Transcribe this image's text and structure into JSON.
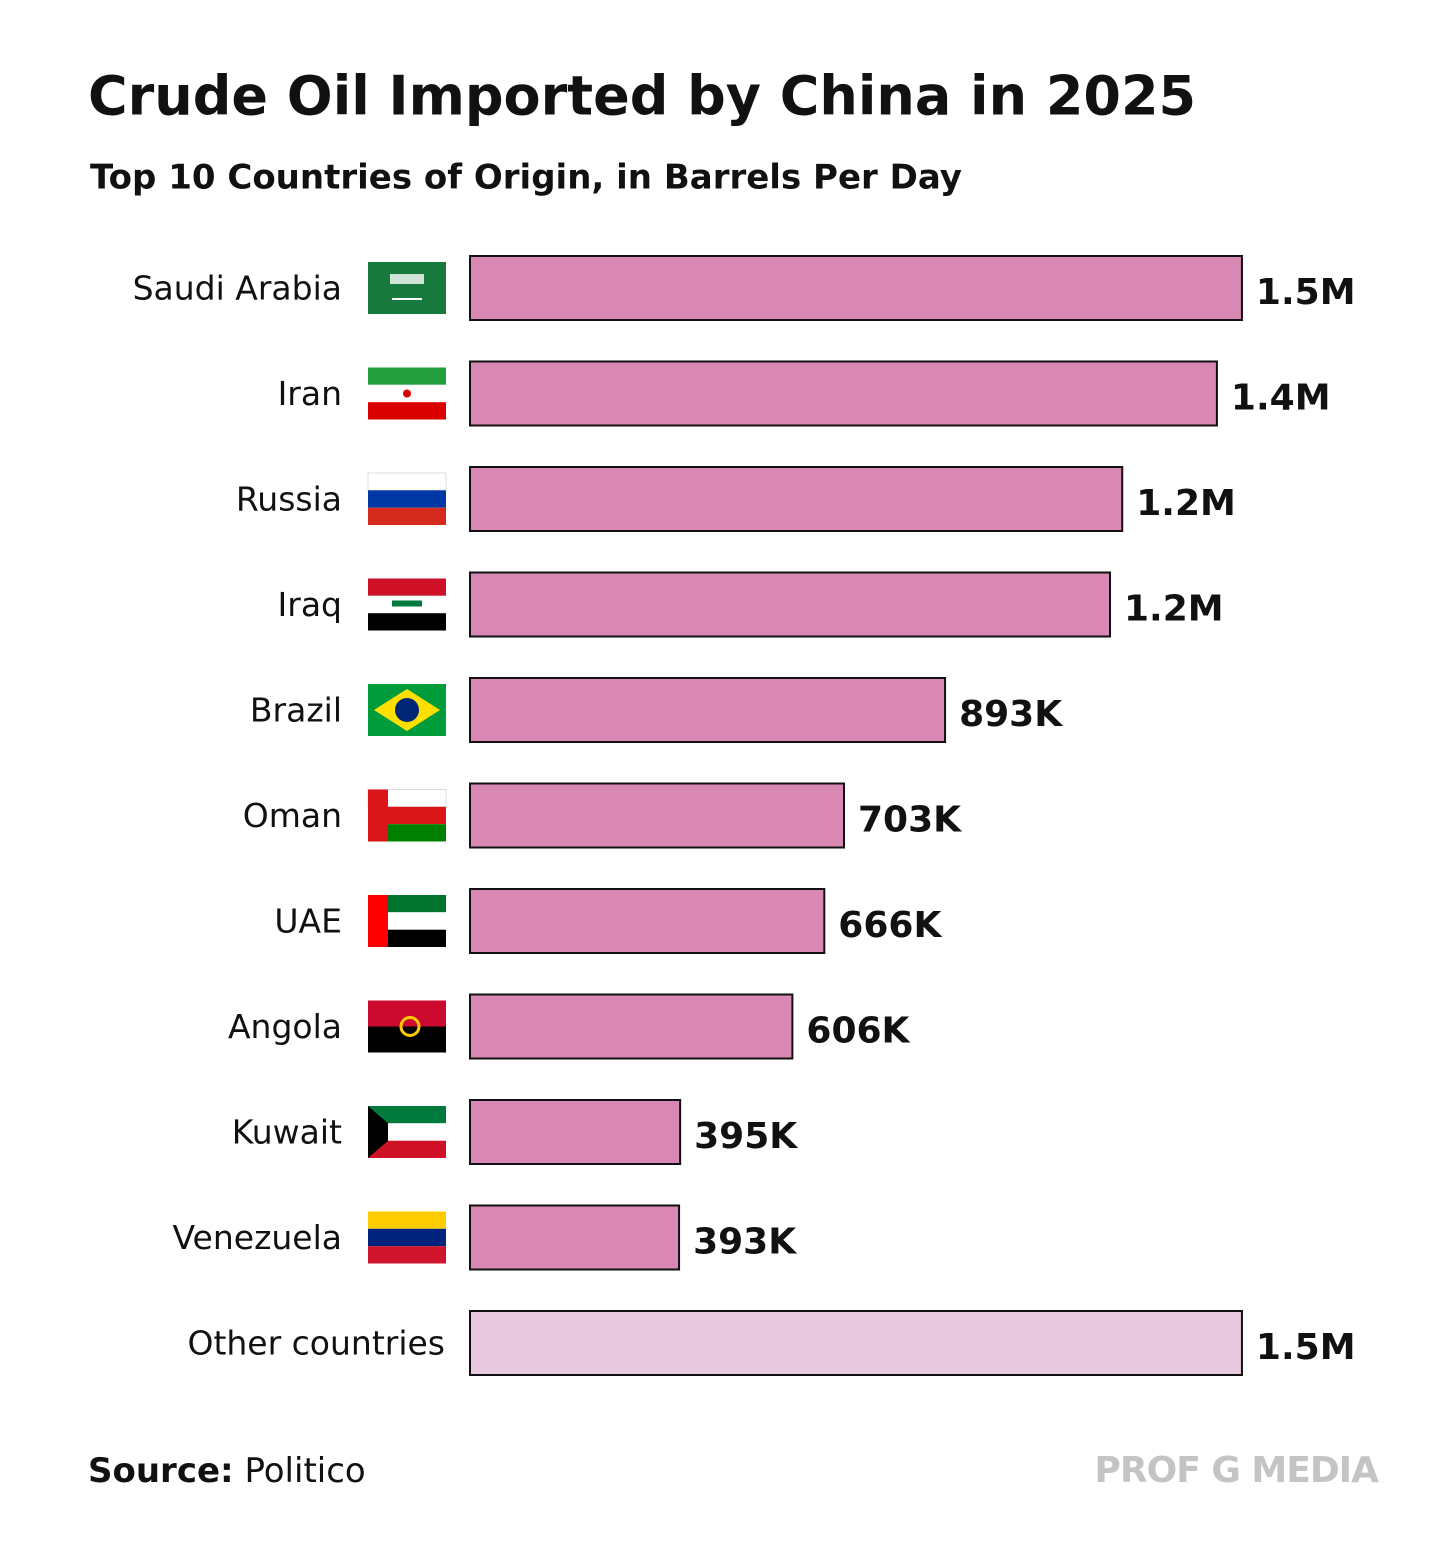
{
  "chart_data": {
    "type": "bar",
    "orientation": "horizontal",
    "title": "Crude Oil Imported by China in 2025",
    "subtitle": "Top 10 Countries of Origin, in Barrels Per Day",
    "categories": [
      "Saudi Arabia",
      "Iran",
      "Russia",
      "Iraq",
      "Brazil",
      "Oman",
      "UAE",
      "Angola",
      "Kuwait",
      "Venezuela",
      "Other countries"
    ],
    "values": [
      1451000,
      1404000,
      1226000,
      1203000,
      893000,
      703000,
      666000,
      606000,
      395000,
      393000,
      1451000
    ],
    "value_labels": [
      "1.5M",
      "1.4M",
      "1.2M",
      "1.2M",
      "893K",
      "703K",
      "666K",
      "606K",
      "395K",
      "393K",
      "1.5M"
    ],
    "colors": [
      "#d987b3",
      "#d987b3",
      "#d987b3",
      "#d987b3",
      "#d987b3",
      "#d987b3",
      "#d987b3",
      "#d987b3",
      "#d987b3",
      "#d987b3",
      "#e8c8de"
    ],
    "xlim": [
      0,
      1500000
    ],
    "source_label": "Source:",
    "source": "Politico",
    "watermark": "PROF G MEDIA"
  }
}
